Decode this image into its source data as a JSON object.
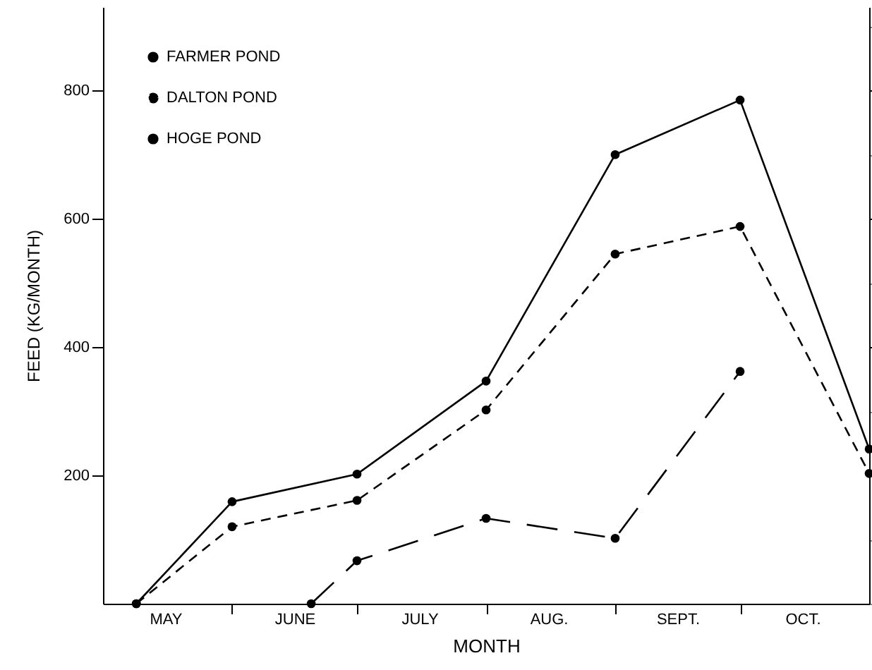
{
  "chart_data": {
    "type": "line",
    "xlabel": "MONTH",
    "ylabel": "FEED (KG/MONTH)",
    "xlim": [
      "--05-01",
      "--11-01"
    ],
    "xticks": [
      {
        "value": "--05-16",
        "label": "MAY"
      },
      {
        "value": "--06-01",
        "label": null
      },
      {
        "value": "--06-16",
        "label": "JUNE"
      },
      {
        "value": "--07-01",
        "label": null
      },
      {
        "value": "--07-16",
        "label": "JULY"
      },
      {
        "value": "--08-01",
        "label": null
      },
      {
        "value": "--08-16",
        "label": "AUG."
      },
      {
        "value": "--09-01",
        "label": null
      },
      {
        "value": "--09-16",
        "label": "SEPT."
      },
      {
        "value": "--10-01",
        "label": null
      },
      {
        "value": "--10-16",
        "label": "OCT."
      }
    ],
    "ylim": [
      0,
      930
    ],
    "yticks": [
      200,
      400,
      600,
      800
    ],
    "marker": "circle",
    "legend": "top left",
    "grid": false,
    "series": [
      {
        "name": "FARMER POND",
        "color": "#000000",
        "line_style": "solid",
        "x": [
          "--05-09",
          "--06-01",
          "--07-01",
          "--08-01",
          "--09-01",
          "--10-01",
          "--11-01"
        ],
        "values": [
          0,
          159,
          202,
          347,
          700,
          785,
          241
        ]
      },
      {
        "name": "DALTON POND",
        "color": "#000000",
        "line_style": "dashed",
        "x": [
          "--05-09",
          "--06-01",
          "--07-01",
          "--08-01",
          "--09-01",
          "--10-01",
          "--11-01"
        ],
        "values": [
          0,
          120,
          161,
          302,
          545,
          588,
          203
        ]
      },
      {
        "name": "HOGE POND",
        "color": "#000000",
        "line_style": "dashed",
        "x": [
          "--06-20",
          "--07-01",
          "--08-01",
          "--09-01",
          "--10-01"
        ],
        "values": [
          0,
          67,
          133,
          102,
          362
        ]
      }
    ]
  }
}
